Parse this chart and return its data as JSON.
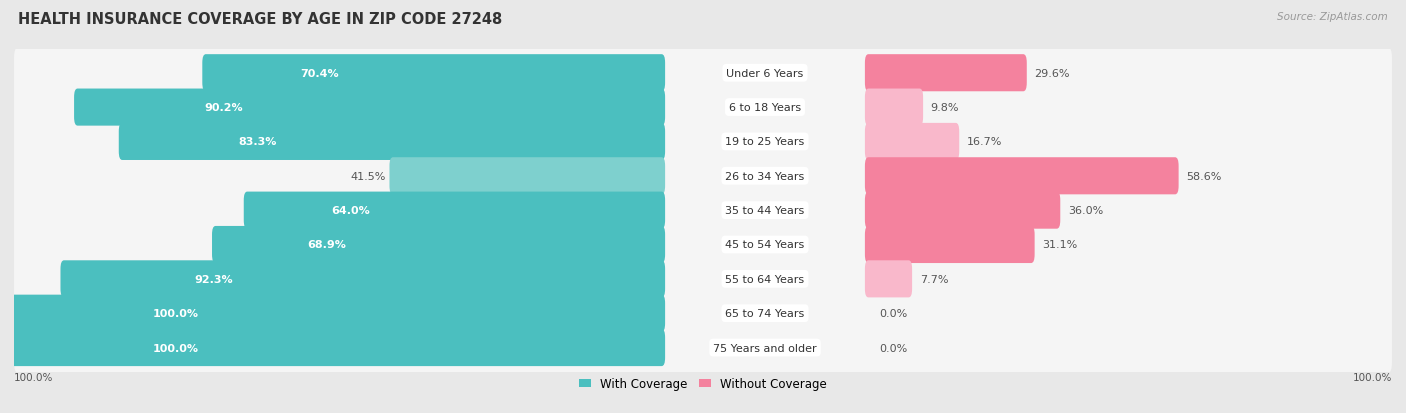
{
  "title": "HEALTH INSURANCE COVERAGE BY AGE IN ZIP CODE 27248",
  "source": "Source: ZipAtlas.com",
  "categories": [
    "Under 6 Years",
    "6 to 18 Years",
    "19 to 25 Years",
    "26 to 34 Years",
    "35 to 44 Years",
    "45 to 54 Years",
    "55 to 64 Years",
    "65 to 74 Years",
    "75 Years and older"
  ],
  "with_coverage": [
    70.4,
    90.2,
    83.3,
    41.5,
    64.0,
    68.9,
    92.3,
    100.0,
    100.0
  ],
  "without_coverage": [
    29.6,
    9.8,
    16.7,
    58.6,
    36.0,
    31.1,
    7.7,
    0.0,
    0.0
  ],
  "color_with": "#4BBFBF",
  "color_with_light": "#7ED0CE",
  "color_without_dark": "#F4829E",
  "color_without_light": "#F9B8CB",
  "bg_color": "#e8e8e8",
  "row_bg_color": "#f5f5f5",
  "title_fontsize": 10.5,
  "bar_label_fontsize": 8,
  "cat_label_fontsize": 8,
  "legend_fontsize": 8.5,
  "source_fontsize": 7.5
}
